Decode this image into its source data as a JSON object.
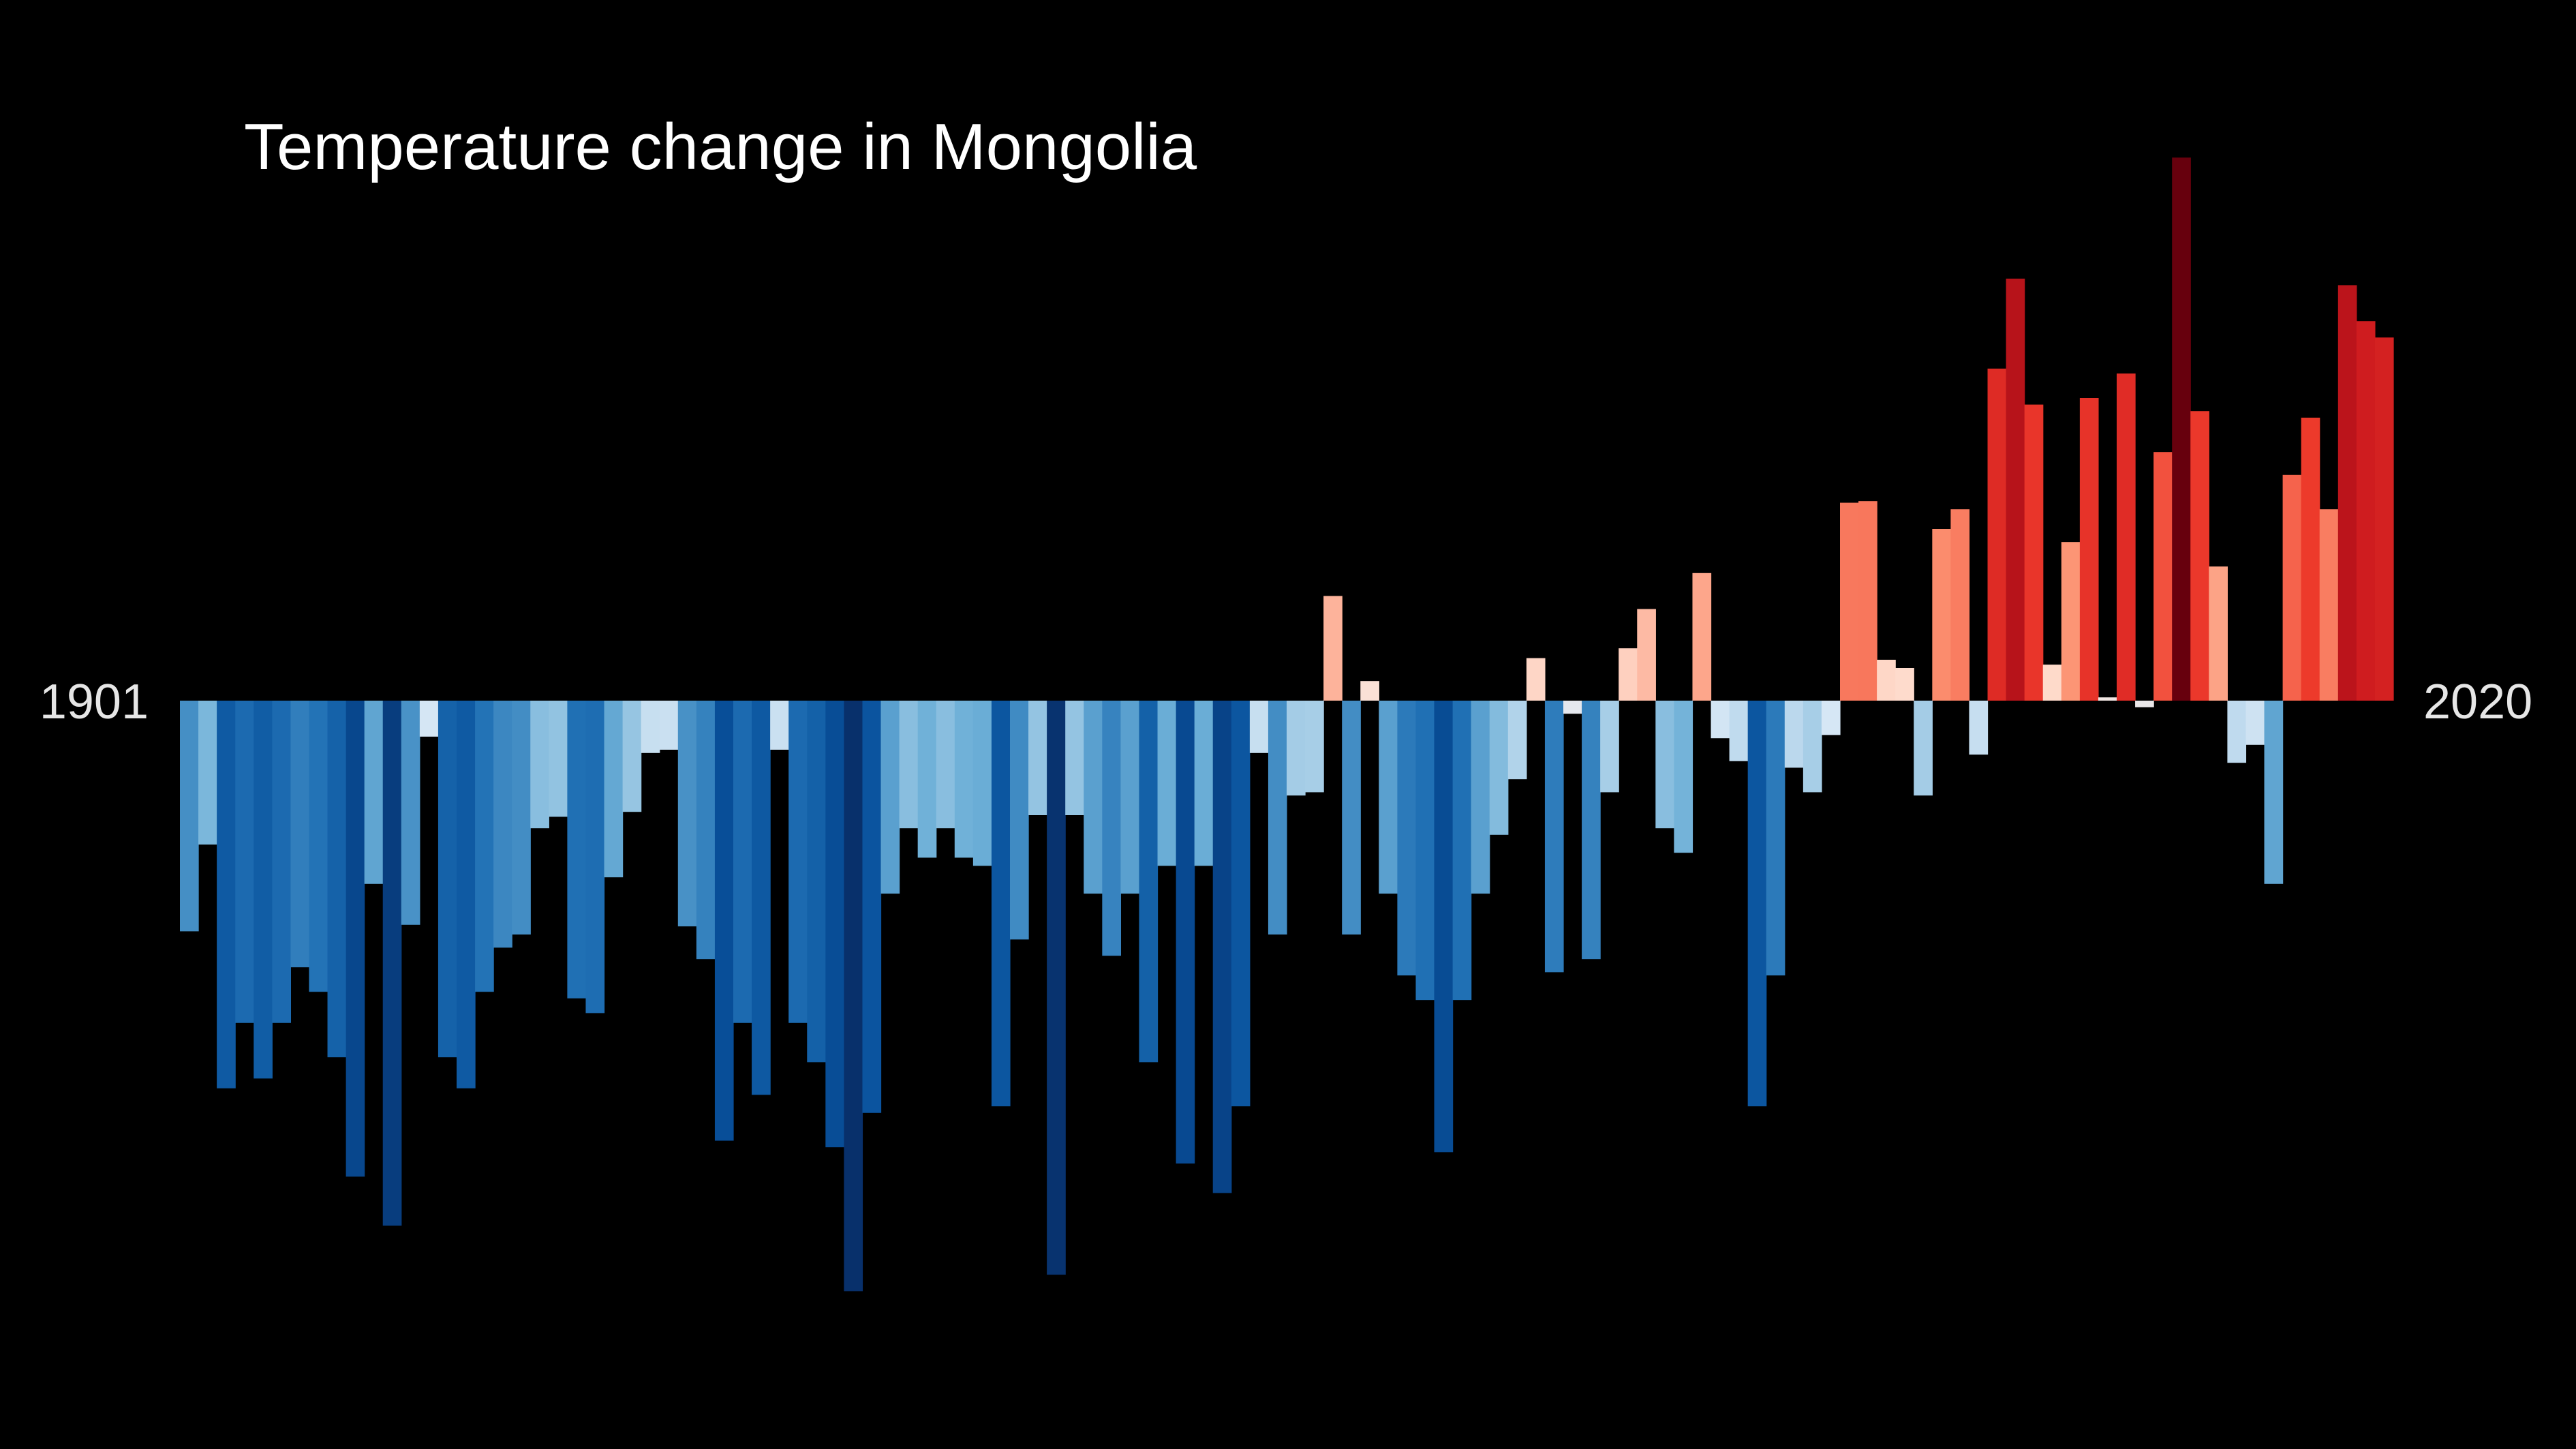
{
  "chart_data": {
    "type": "bar",
    "title": "Temperature change in Mongolia",
    "x_start_label": "1901",
    "x_end_label": "2020",
    "grid": false,
    "legend": "none",
    "year_start": 1901,
    "year_end": 2020,
    "values": [
      -1.41,
      -0.88,
      -2.37,
      -1.97,
      -2.31,
      -1.97,
      -1.63,
      -1.78,
      -2.18,
      -2.91,
      -1.12,
      -3.21,
      -1.37,
      -0.22,
      -2.18,
      -2.37,
      -1.78,
      -1.51,
      -1.43,
      -0.78,
      -0.71,
      -1.82,
      -1.91,
      -1.08,
      -0.68,
      -0.32,
      -0.3,
      -1.38,
      -1.58,
      -2.69,
      -1.97,
      -2.41,
      -0.3,
      -1.97,
      -2.21,
      -2.73,
      -3.61,
      -2.52,
      -1.18,
      -0.78,
      -0.96,
      -0.78,
      -0.96,
      -1.01,
      -2.48,
      -1.46,
      -0.7,
      -3.51,
      -0.7,
      -1.18,
      -1.56,
      -1.18,
      -2.21,
      -1.01,
      -2.83,
      -1.01,
      -3.01,
      -2.48,
      -0.32,
      -1.43,
      -0.58,
      -0.56,
      0.64,
      -1.43,
      0.12,
      -1.18,
      -1.68,
      -1.83,
      -2.76,
      -1.83,
      -1.18,
      -0.82,
      -0.48,
      0.26,
      -1.66,
      -0.08,
      -1.58,
      -0.56,
      0.32,
      0.56,
      -0.78,
      -0.93,
      0.78,
      -0.23,
      -0.37,
      -2.48,
      -1.68,
      -0.41,
      -0.56,
      -0.21,
      1.21,
      1.22,
      0.25,
      0.2,
      -0.58,
      1.05,
      1.17,
      -0.33,
      2.03,
      2.58,
      1.81,
      0.22,
      0.97,
      1.85,
      0.02,
      2.0,
      -0.04,
      1.52,
      3.32,
      1.77,
      0.82,
      -0.38,
      -0.27,
      -1.12,
      1.38,
      1.73,
      1.17,
      2.54,
      2.32,
      2.22
    ],
    "colors": {
      "background": "#000000",
      "blue_darkest": "#08306b",
      "blue_dark": "#08519c",
      "blue_mid": "#2171b5",
      "blue_light": "#6baed6",
      "blue_pale": "#deebf7",
      "red_pale": "#fee0d2",
      "red_light": "#fc9272",
      "red_mid": "#ef3b2c",
      "red_dark": "#cb181d",
      "red_darkest": "#67000d"
    }
  }
}
